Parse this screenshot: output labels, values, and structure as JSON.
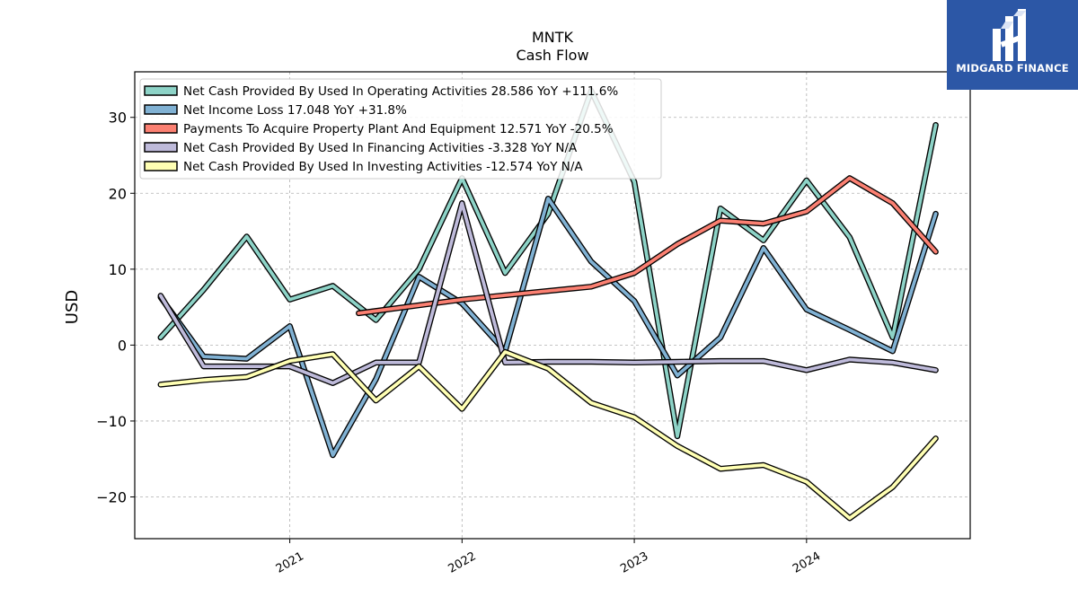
{
  "chart_data": {
    "type": "line",
    "title": "MNTK",
    "subtitle": "Cash Flow",
    "ylabel": "USD",
    "xlabel": "",
    "xlim": [
      2020.1,
      2024.95
    ],
    "ylim": [
      -25.5,
      36
    ],
    "yticks": [
      -20,
      -10,
      0,
      10,
      20,
      30
    ],
    "ytick_labels": [
      "−20",
      "−10",
      "0",
      "10",
      "20",
      "30"
    ],
    "xticks": [
      2021,
      2022,
      2023,
      2024
    ],
    "xtick_labels": [
      "2021",
      "2022",
      "2023",
      "2024"
    ],
    "grid": true,
    "legend_position": "top-left",
    "series": [
      {
        "name": "Net Cash Provided By Used In Operating Activities",
        "legend": "Net Cash Provided By Used In Operating Activities  28.586 YoY +111.6%",
        "color": "#8dd3c7",
        "x": [
          2020.25,
          2020.5,
          2020.75,
          2021.0,
          2021.25,
          2021.5,
          2021.75,
          2022.0,
          2022.25,
          2022.5,
          2022.75,
          2023.0,
          2023.25,
          2023.5,
          2023.75,
          2024.0,
          2024.25,
          2024.5,
          2024.75
        ],
        "y": [
          1.0,
          7.3,
          14.3,
          6.0,
          7.8,
          3.3,
          10.0,
          22.0,
          9.5,
          17.3,
          33.5,
          21.5,
          -12.0,
          18.0,
          13.8,
          21.7,
          14.2,
          1.0,
          29.0
        ]
      },
      {
        "name": "Net Income Loss",
        "legend": "Net Income Loss  17.048 YoY +31.8%",
        "color": "#80b1d3",
        "x": [
          2020.25,
          2020.5,
          2020.75,
          2021.0,
          2021.25,
          2021.5,
          2021.75,
          2022.0,
          2022.25,
          2022.5,
          2022.75,
          2023.0,
          2023.25,
          2023.5,
          2023.75,
          2024.0,
          2024.25,
          2024.5,
          2024.75
        ],
        "y": [
          6.3,
          -1.5,
          -1.8,
          2.5,
          -14.5,
          -4.5,
          9.0,
          5.5,
          -0.8,
          19.3,
          11.0,
          5.8,
          -4.0,
          1.0,
          12.8,
          4.7,
          2.0,
          -0.8,
          17.3
        ]
      },
      {
        "name": "Payments To Acquire Property Plant And Equipment",
        "legend": "Payments To Acquire Property Plant And Equipment  12.571 YoY -20.5%",
        "color": "#fb8072",
        "x": [
          2021.4,
          2022.0,
          2022.75,
          2023.0,
          2023.25,
          2023.5,
          2023.75,
          2024.0,
          2024.25,
          2024.5,
          2024.75
        ],
        "y": [
          4.2,
          6.0,
          7.7,
          9.5,
          13.3,
          16.4,
          16.0,
          17.6,
          22.0,
          18.7,
          12.3
        ]
      },
      {
        "name": "Net Cash Provided By Used In Financing Activities",
        "legend": "Net Cash Provided By Used In Financing Activities  -3.328 YoY N/A",
        "color": "#bebada",
        "x": [
          2020.25,
          2020.5,
          2020.75,
          2021.0,
          2021.25,
          2021.5,
          2021.75,
          2022.0,
          2022.25,
          2022.5,
          2022.75,
          2023.0,
          2023.25,
          2023.5,
          2023.75,
          2024.0,
          2024.25,
          2024.5,
          2024.75
        ],
        "y": [
          6.5,
          -2.8,
          -2.8,
          -2.8,
          -5.0,
          -2.3,
          -2.3,
          18.7,
          -2.3,
          -2.2,
          -2.2,
          -2.3,
          -2.2,
          -2.1,
          -2.1,
          -3.3,
          -1.9,
          -2.3,
          -3.3
        ]
      },
      {
        "name": "Net Cash Provided By Used In Investing Activities",
        "legend": "Net Cash Provided By Used In Investing Activities  -12.574 YoY N/A",
        "color": "#ffffb3",
        "x": [
          2020.25,
          2020.5,
          2020.75,
          2021.0,
          2021.25,
          2021.5,
          2021.75,
          2022.0,
          2022.25,
          2022.5,
          2022.75,
          2023.0,
          2023.25,
          2023.5,
          2023.75,
          2024.0,
          2024.25,
          2024.5,
          2024.75
        ],
        "y": [
          -5.2,
          -4.6,
          -4.2,
          -2.1,
          -1.2,
          -7.3,
          -2.8,
          -8.4,
          -0.9,
          -3.1,
          -7.6,
          -9.5,
          -13.3,
          -16.3,
          -15.8,
          -18.0,
          -22.8,
          -18.7,
          -12.3
        ]
      }
    ]
  },
  "logo": {
    "text": "MIDGARD FINANCE",
    "icon": "midgard-logo-icon",
    "background": "#2c57a6"
  }
}
